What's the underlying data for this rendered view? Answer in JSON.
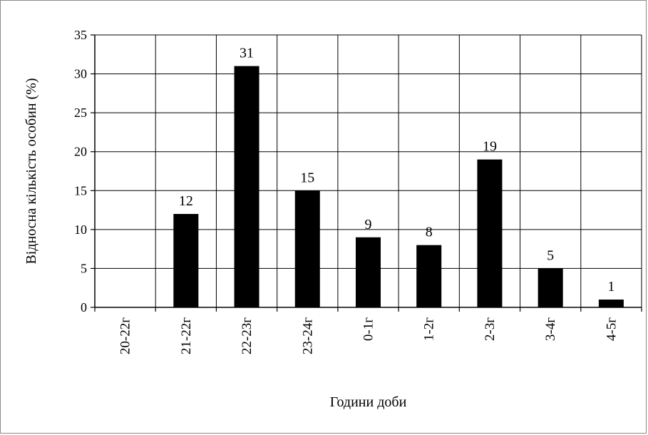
{
  "chart_data": {
    "type": "bar",
    "title": "",
    "xlabel": "Години доби",
    "ylabel": "Відносна кількість особин (%)",
    "categories": [
      "20-22г",
      "21-22г",
      "22-23г",
      "23-24г",
      "0-1г",
      "1-2г",
      "2-3г",
      "3-4г",
      "4-5г"
    ],
    "values": [
      0,
      12,
      31,
      15,
      9,
      8,
      19,
      5,
      1
    ],
    "data_labels": [
      "",
      "12",
      "31",
      "15",
      "9",
      "8",
      "19",
      "5",
      "1"
    ],
    "ylim": [
      0,
      35
    ],
    "yticks": [
      0,
      5,
      10,
      15,
      20,
      25,
      30,
      35
    ],
    "ytick_labels": [
      "0",
      "5",
      "10",
      "15",
      "20",
      "25",
      "30",
      "35"
    ],
    "grid": true,
    "legend": "none",
    "bar_color": "#000000",
    "grid_color": "#000000"
  }
}
